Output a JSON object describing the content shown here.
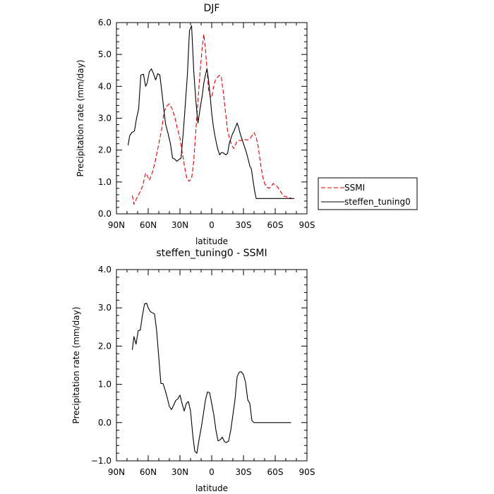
{
  "chart_data": [
    {
      "type": "line",
      "title": "DJF",
      "xlabel": "latitude",
      "ylabel": "Precipitation rate  (mm/day)",
      "xlim": [
        -90,
        90
      ],
      "ylim": [
        0,
        6
      ],
      "x_ticks": [
        -90,
        -60,
        -30,
        0,
        30,
        60,
        90
      ],
      "x_tick_labels": [
        "90N",
        "60N",
        "30N",
        "0",
        "30S",
        "60S",
        "90S"
      ],
      "y_ticks": [
        0,
        1,
        2,
        3,
        4,
        5,
        6
      ],
      "y_tick_labels": [
        "0.0",
        "1.0",
        "2.0",
        "3.0",
        "4.0",
        "5.0",
        "6.0"
      ],
      "legend": {
        "placement": "outside-right",
        "entries": [
          {
            "label": "SSMI",
            "color": "#e00000",
            "dash": "dashed"
          },
          {
            "label": "steffen_tuning0",
            "color": "#000000",
            "dash": "solid"
          }
        ]
      },
      "series": [
        {
          "name": "SSMI",
          "color": "#e00000",
          "dash": "dashed",
          "x": [
            -75,
            -73.5,
            -70,
            -67.5,
            -65,
            -62.5,
            -61,
            -59,
            -56,
            -53,
            -50,
            -47,
            -45,
            -42.5,
            -40,
            -37.5,
            -35,
            -33,
            -30,
            -28,
            -25.5,
            -23.5,
            -21.5,
            -19,
            -17,
            -15,
            -13,
            -11,
            -9,
            -7.5,
            -6,
            -4.5,
            -3,
            -1.5,
            0,
            1.5,
            3,
            4.5,
            6,
            7.5,
            9,
            11,
            13,
            15,
            17,
            19,
            21,
            23.5,
            25.5,
            28,
            30,
            32,
            34,
            36,
            38,
            40,
            42,
            44,
            46,
            48,
            50,
            52,
            54,
            56,
            58,
            60,
            62,
            64,
            66,
            68,
            70,
            72,
            73.5,
            75,
            76.5,
            78
          ],
          "values": [
            0.58,
            0.3,
            0.55,
            0.7,
            0.9,
            1.28,
            1.2,
            1.05,
            1.3,
            1.7,
            2.2,
            2.7,
            3.2,
            3.38,
            3.45,
            3.3,
            3.05,
            2.75,
            2.38,
            1.95,
            1.45,
            1.1,
            1.02,
            1.1,
            1.65,
            2.6,
            3.55,
            4.45,
            5.2,
            5.63,
            5.2,
            4.55,
            3.9,
            3.7,
            3.65,
            3.95,
            4.15,
            4.25,
            4.3,
            4.35,
            4.3,
            3.8,
            3.2,
            2.6,
            2.35,
            2.15,
            2.05,
            2.25,
            2.3,
            2.3,
            2.35,
            2.32,
            2.32,
            2.35,
            2.45,
            2.55,
            2.4,
            2.1,
            1.6,
            1.2,
            0.95,
            0.85,
            0.8,
            0.85,
            0.95,
            0.9,
            0.85,
            0.75,
            0.65,
            0.55,
            0.55,
            0.5,
            0.5,
            0.5,
            0.5,
            0.5
          ]
        },
        {
          "name": "steffen_tuning0",
          "color": "#000000",
          "dash": "solid",
          "x": [
            -79,
            -77.5,
            -75.5,
            -73,
            -71,
            -69,
            -67,
            -64.5,
            -62.5,
            -61,
            -59,
            -57,
            -55,
            -53,
            -51,
            -49,
            -47,
            -45,
            -43.5,
            -41.5,
            -39,
            -37,
            -35,
            -33,
            -31,
            -29,
            -27,
            -25,
            -23,
            -21,
            -19,
            -17,
            -15,
            -13,
            -11,
            -9,
            -7.5,
            -6,
            -4.5,
            -3,
            -1.5,
            0,
            1.5,
            3,
            4.5,
            6,
            7.5,
            9,
            10.5,
            12,
            13.5,
            15,
            16.5,
            18,
            19.5,
            21,
            22.5,
            24,
            25.5,
            27,
            28.5,
            30,
            31.5,
            33,
            34.5,
            36,
            37.5,
            39,
            40.5,
            42,
            43.5,
            45,
            46.5,
            48,
            49.5,
            51,
            52.5,
            54,
            55.5,
            57,
            58.5,
            60,
            61.5,
            63,
            64.5,
            66,
            67.5,
            69,
            70.5,
            72,
            73.5,
            75,
            76.5,
            78,
            79
          ],
          "values": [
            2.15,
            2.45,
            2.55,
            2.6,
            3.0,
            3.3,
            4.35,
            4.38,
            4.0,
            4.1,
            4.45,
            4.55,
            4.4,
            4.2,
            4.4,
            4.35,
            3.8,
            3.2,
            2.8,
            2.55,
            2.2,
            1.75,
            1.72,
            1.65,
            1.7,
            1.75,
            2.5,
            3.4,
            4.35,
            5.75,
            5.9,
            4.5,
            3.55,
            2.85,
            3.3,
            3.7,
            4.1,
            4.35,
            4.55,
            4.2,
            3.7,
            3.15,
            2.75,
            2.45,
            2.2,
            2.0,
            1.85,
            1.92,
            1.92,
            1.88,
            1.85,
            1.9,
            2.2,
            2.35,
            2.5,
            2.6,
            2.72,
            2.85,
            2.7,
            2.5,
            2.35,
            2.2,
            2.05,
            1.9,
            1.7,
            1.5,
            1.4,
            1.05,
            0.72,
            0.48,
            0.48,
            0.48,
            0.48,
            0.48,
            0.48,
            0.48,
            0.48,
            0.48,
            0.48,
            0.48,
            0.48,
            0.48,
            0.48,
            0.48,
            0.48,
            0.48,
            0.48,
            0.48,
            0.48,
            0.48,
            0.48,
            0.48,
            0.48,
            0.48,
            0.48
          ]
        }
      ]
    },
    {
      "type": "line",
      "title": "steffen_tuning0 - SSMI",
      "xlabel": "latitude",
      "ylabel": "Precipitation rate  (mm/day)",
      "xlim": [
        -90,
        90
      ],
      "ylim": [
        -1,
        4
      ],
      "x_ticks": [
        -90,
        -60,
        -30,
        0,
        30,
        60,
        90
      ],
      "x_tick_labels": [
        "90N",
        "60N",
        "30N",
        "0",
        "30S",
        "60S",
        "90S"
      ],
      "y_ticks": [
        -1,
        0,
        1,
        2,
        3,
        4
      ],
      "y_tick_labels": [
        "−1.0",
        "0.0",
        "1.0",
        "2.0",
        "3.0",
        "4.0"
      ],
      "series": [
        {
          "color": "#000000",
          "dash": "solid",
          "x": [
            -75,
            -73.5,
            -71.5,
            -69.5,
            -67.5,
            -65.5,
            -63.5,
            -61.5,
            -60,
            -58,
            -56,
            -54,
            -52,
            -50,
            -48,
            -46,
            -44,
            -42,
            -40,
            -38,
            -36,
            -34,
            -32,
            -30,
            -28,
            -26,
            -24,
            -22,
            -20,
            -18,
            -16,
            -14,
            -12,
            -10,
            -8,
            -6,
            -4,
            -2,
            0,
            2,
            4,
            6,
            8,
            10,
            12,
            14,
            16,
            18,
            20,
            22,
            24,
            26,
            28,
            30,
            32,
            34,
            36,
            38,
            40,
            42,
            44,
            46,
            48,
            50,
            52,
            54,
            56,
            58,
            60,
            62,
            64,
            66,
            68,
            70,
            72,
            74,
            75
          ],
          "values": [
            1.9,
            2.25,
            2.05,
            2.4,
            2.42,
            2.8,
            3.1,
            3.12,
            3.0,
            2.9,
            2.87,
            2.84,
            2.4,
            1.7,
            1.02,
            1.02,
            0.85,
            0.65,
            0.42,
            0.34,
            0.45,
            0.58,
            0.62,
            0.72,
            0.5,
            0.3,
            0.5,
            0.55,
            0.3,
            -0.3,
            -0.75,
            -0.8,
            -0.45,
            -0.15,
            0.2,
            0.58,
            0.8,
            0.78,
            0.5,
            0.2,
            -0.2,
            -0.48,
            -0.45,
            -0.38,
            -0.5,
            -0.52,
            -0.48,
            -0.2,
            0.2,
            0.6,
            1.2,
            1.32,
            1.33,
            1.25,
            1.05,
            0.6,
            0.5,
            0.05,
            0.0,
            0.0,
            0.0,
            0.0,
            0.0,
            0.0,
            0.0,
            0.0,
            0.0,
            0.0,
            0.0,
            0.0,
            0.0,
            0.0,
            0.0,
            0.0,
            0.0,
            0.0,
            0.0
          ]
        }
      ]
    }
  ]
}
